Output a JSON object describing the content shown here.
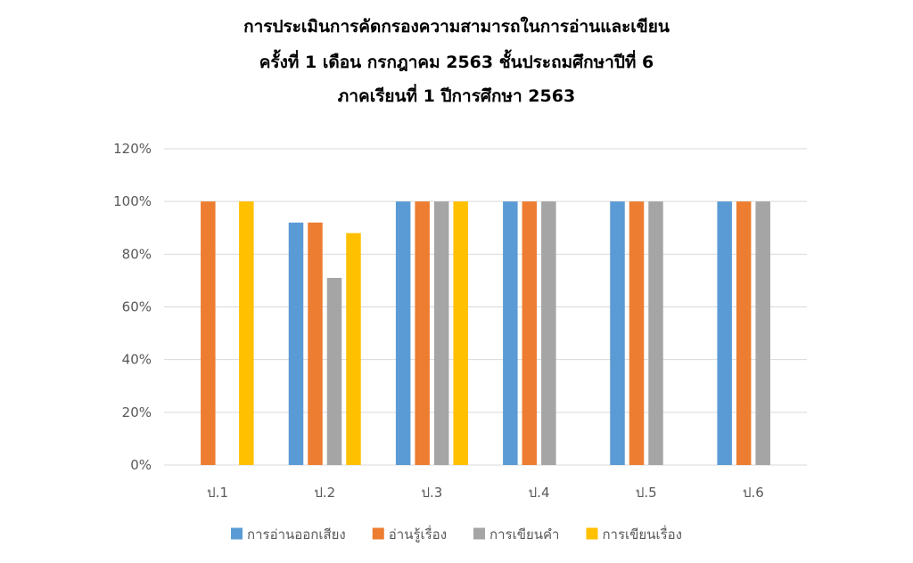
{
  "chart_data": {
    "type": "bar",
    "title_lines": [
      "การประเมินการคัดกรองความสามารถในการอ่านและเขียน",
      "ครั้งที่ 1 เดือน กรกฎาคม 2563 ชั้นประถมศึกษาปีที่ 6",
      "ภาคเรียนที่  1 ปีการศึกษา 2563"
    ],
    "categories": [
      "ป.1",
      "ป.2",
      "ป.3",
      "ป.4",
      "ป.5",
      "ป.6"
    ],
    "series": [
      {
        "name": "การอ่านออกเสียง",
        "color": "#5B9BD5",
        "values": [
          null,
          92,
          100,
          100,
          100,
          100
        ]
      },
      {
        "name": "อ่านรู้เรื่อง",
        "color": "#ED7D31",
        "values": [
          100,
          92,
          100,
          100,
          100,
          100
        ]
      },
      {
        "name": "การเขียนคำ",
        "color": "#A5A5A5",
        "values": [
          null,
          71,
          100,
          100,
          100,
          100
        ]
      },
      {
        "name": "การเขียนเรื่อง",
        "color": "#FFC000",
        "values": [
          100,
          88,
          100,
          null,
          null,
          null
        ]
      }
    ],
    "y_ticks": [
      "0%",
      "20%",
      "40%",
      "60%",
      "80%",
      "100%",
      "120%"
    ],
    "ylim": [
      0,
      120
    ],
    "y_unit": "%",
    "grid": true,
    "legend_position": "bottom"
  }
}
